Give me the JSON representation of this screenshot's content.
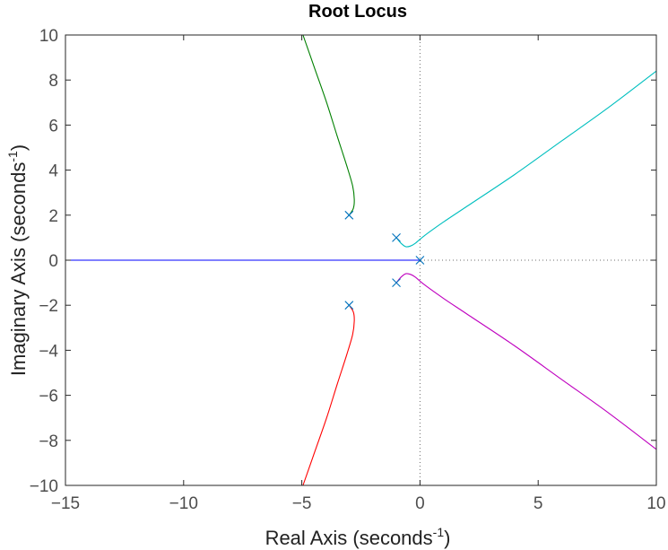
{
  "chart_data": {
    "type": "line",
    "title": "Root Locus",
    "xlabel": "Real Axis (seconds",
    "ylabel": "Imaginary Axis (seconds",
    "unit_exponent": "-1",
    "unit_close": ")",
    "xlim": [
      -15,
      10
    ],
    "ylim": [
      -10,
      10
    ],
    "xticks": [
      -15,
      -10,
      -5,
      0,
      5,
      10
    ],
    "yticks": [
      -10,
      -8,
      -6,
      -4,
      -2,
      0,
      2,
      4,
      6,
      8,
      10
    ],
    "grid": false,
    "box": true,
    "origin_dotted_lines": true,
    "poles": [
      {
        "x": -3,
        "y": 2
      },
      {
        "x": -3,
        "y": -2
      },
      {
        "x": -1,
        "y": 1
      },
      {
        "x": -1,
        "y": -1
      },
      {
        "x": 0,
        "y": 0
      }
    ],
    "pole_marker_color": "#0072bd",
    "series": [
      {
        "color": "#0000ff",
        "points": [
          [
            0,
            0
          ],
          [
            -15,
            0
          ]
        ]
      },
      {
        "color": "#008000",
        "points": [
          [
            -3,
            2
          ],
          [
            -2.82,
            2.3
          ],
          [
            -2.78,
            2.7
          ],
          [
            -2.85,
            3.3
          ],
          [
            -3.1,
            4.2
          ],
          [
            -3.5,
            5.5
          ],
          [
            -3.95,
            7
          ],
          [
            -4.45,
            8.5
          ],
          [
            -4.95,
            10
          ]
        ]
      },
      {
        "color": "#ff0000",
        "points": [
          [
            -3,
            -2
          ],
          [
            -2.82,
            -2.3
          ],
          [
            -2.78,
            -2.7
          ],
          [
            -2.85,
            -3.3
          ],
          [
            -3.1,
            -4.2
          ],
          [
            -3.5,
            -5.5
          ],
          [
            -3.95,
            -7
          ],
          [
            -4.45,
            -8.5
          ],
          [
            -4.95,
            -10
          ]
        ]
      },
      {
        "color": "#00bfbf",
        "points": [
          [
            -1,
            1
          ],
          [
            -0.8,
            0.75
          ],
          [
            -0.6,
            0.6
          ],
          [
            -0.4,
            0.63
          ],
          [
            -0.2,
            0.75
          ],
          [
            0.2,
            1.1
          ],
          [
            1,
            1.7
          ],
          [
            2,
            2.4
          ],
          [
            4,
            3.8
          ],
          [
            6,
            5.3
          ],
          [
            8,
            6.8
          ],
          [
            10,
            8.4
          ]
        ]
      },
      {
        "color": "#bf00bf",
        "points": [
          [
            -1,
            -1
          ],
          [
            -0.8,
            -0.75
          ],
          [
            -0.6,
            -0.6
          ],
          [
            -0.4,
            -0.63
          ],
          [
            -0.2,
            -0.75
          ],
          [
            0.2,
            -1.1
          ],
          [
            1,
            -1.7
          ],
          [
            2,
            -2.4
          ],
          [
            4,
            -3.8
          ],
          [
            6,
            -5.3
          ],
          [
            8,
            -6.8
          ],
          [
            10,
            -8.4
          ]
        ]
      }
    ]
  }
}
